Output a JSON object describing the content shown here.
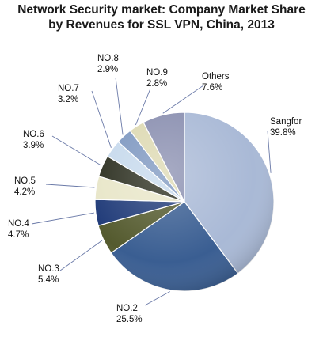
{
  "title": {
    "line1": "Network Security market: Company Market Share",
    "line2": "by Revenues for SSL VPN, China, 2013"
  },
  "chart_data": {
    "type": "pie",
    "title": "Network Security market: Company Market Share by Revenues for SSL VPN, China, 2013",
    "slices": [
      {
        "label": "Sangfor",
        "value": 39.8,
        "display": "39.8%",
        "color": "#a9b9d6"
      },
      {
        "label": "NO.2",
        "value": 25.5,
        "display": "25.5%",
        "color": "#3a5e92"
      },
      {
        "label": "NO.3",
        "value": 5.4,
        "display": "5.4%",
        "color": "#545a2e"
      },
      {
        "label": "NO.4",
        "value": 4.7,
        "display": "4.7%",
        "color": "#1f3a78"
      },
      {
        "label": "NO.5",
        "value": 4.2,
        "display": "4.2%",
        "color": "#e8e6c8"
      },
      {
        "label": "NO.6",
        "value": 3.9,
        "display": "3.9%",
        "color": "#2b2e1f"
      },
      {
        "label": "NO.7",
        "value": 3.2,
        "display": "3.2%",
        "color": "#c6d9ec"
      },
      {
        "label": "NO.8",
        "value": 2.9,
        "display": "2.9%",
        "color": "#7d97c0"
      },
      {
        "label": "NO.9",
        "value": 2.8,
        "display": "2.8%",
        "color": "#ddd9b2"
      },
      {
        "label": "Others",
        "value": 7.6,
        "display": "7.6%",
        "color": "#8a8fb0"
      }
    ],
    "start_angle": "12 o'clock",
    "direction": "clockwise",
    "legend": "none (direct labels with leader lines)",
    "style": "3D-shaded pie"
  }
}
